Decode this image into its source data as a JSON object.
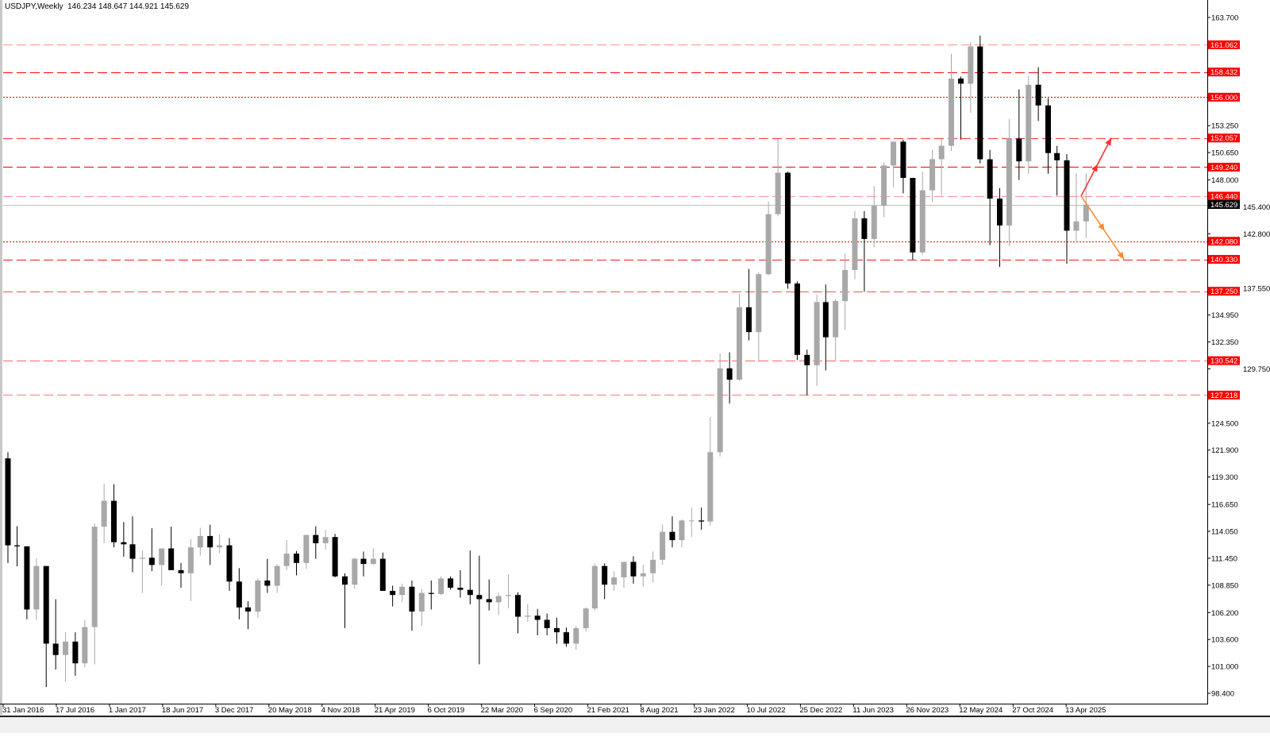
{
  "header": {
    "symbol_timeframe": "USDJPY,Weekly",
    "ohlc": "146.234 148.647 144.921 145.629"
  },
  "chart_data": {
    "type": "candlestick",
    "title": "USDJPY,Weekly",
    "ylim": [
      98.4,
      163.7
    ],
    "grid": false,
    "y_ticks": [
      "163.700",
      "153.250",
      "150.650",
      "148.000",
      "145.400",
      "142.800",
      "137.550",
      "134.950",
      "132.350",
      "129.750",
      "124.500",
      "121.900",
      "119.300",
      "116.650",
      "114.050",
      "111.450",
      "108.850",
      "106.200",
      "103.600",
      "101.000",
      "98.400"
    ],
    "x_ticks": [
      "31 Jan 2016",
      "17 Jul 2016",
      "1 Jan 2017",
      "18 Jun 2017",
      "3 Dec 2017",
      "20 May 2018",
      "4 Nov 2018",
      "21 Apr 2019",
      "6 Oct 2019",
      "22 Mar 2020",
      "6 Sep 2020",
      "21 Feb 2021",
      "8 Aug 2021",
      "23 Jan 2022",
      "10 Jul 2022",
      "25 Dec 2022",
      "11 Jun 2023",
      "26 Nov 2023",
      "12 May 2024",
      "27 Oct 2024",
      "13 Apr 2025"
    ],
    "candles_columns": [
      "month",
      "open",
      "high",
      "low",
      "close"
    ],
    "candles": [
      [
        "2016-02",
        121.1,
        121.7,
        110.98,
        112.7
      ],
      [
        "2016-03",
        112.7,
        114.55,
        110.67,
        112.6
      ],
      [
        "2016-04",
        112.6,
        112.6,
        105.55,
        106.5
      ],
      [
        "2016-05",
        106.5,
        111.45,
        105.5,
        110.7
      ],
      [
        "2016-06",
        110.7,
        110.7,
        99.0,
        103.2
      ],
      [
        "2016-07",
        103.2,
        107.5,
        100.7,
        102.1
      ],
      [
        "2016-08",
        102.1,
        104.3,
        99.55,
        103.4
      ],
      [
        "2016-09",
        103.4,
        104.3,
        100.1,
        101.3
      ],
      [
        "2016-10",
        101.3,
        105.5,
        100.9,
        104.8
      ],
      [
        "2016-11",
        104.8,
        114.8,
        101.2,
        114.5
      ],
      [
        "2016-12",
        114.5,
        118.65,
        112.9,
        117.0
      ],
      [
        "2017-01",
        117.0,
        118.6,
        112.5,
        113.0
      ],
      [
        "2017-02",
        113.0,
        114.95,
        111.6,
        112.8
      ],
      [
        "2017-03",
        112.8,
        115.5,
        110.1,
        111.4
      ],
      [
        "2017-04",
        111.4,
        112.2,
        108.1,
        111.5
      ],
      [
        "2017-05",
        111.5,
        114.35,
        110.2,
        110.8
      ],
      [
        "2017-06",
        110.8,
        112.4,
        108.8,
        112.4
      ],
      [
        "2017-07",
        112.4,
        114.5,
        110.6,
        110.3
      ],
      [
        "2017-08",
        110.3,
        111.0,
        108.6,
        110.0
      ],
      [
        "2017-09",
        110.0,
        113.3,
        107.3,
        112.5
      ],
      [
        "2017-10",
        112.5,
        114.4,
        111.7,
        113.6
      ],
      [
        "2017-11",
        113.6,
        114.7,
        110.8,
        112.5
      ],
      [
        "2017-12",
        112.5,
        113.75,
        111.95,
        112.7
      ],
      [
        "2018-01",
        112.7,
        113.4,
        108.3,
        109.2
      ],
      [
        "2018-02",
        109.2,
        110.5,
        105.55,
        106.7
      ],
      [
        "2018-03",
        106.7,
        107.3,
        104.6,
        106.3
      ],
      [
        "2018-04",
        106.3,
        109.5,
        105.7,
        109.3
      ],
      [
        "2018-05",
        109.3,
        111.4,
        108.1,
        108.8
      ],
      [
        "2018-06",
        108.8,
        110.9,
        108.1,
        110.7
      ],
      [
        "2018-07",
        110.7,
        113.2,
        110.3,
        111.9
      ],
      [
        "2018-08",
        111.9,
        112.15,
        109.8,
        111.0
      ],
      [
        "2018-09",
        111.0,
        113.7,
        110.4,
        113.7
      ],
      [
        "2018-10",
        113.7,
        114.55,
        111.4,
        112.9
      ],
      [
        "2018-11",
        112.9,
        114.2,
        112.3,
        113.5
      ],
      [
        "2018-12",
        113.5,
        113.8,
        109.6,
        109.7
      ],
      [
        "2019-01",
        109.7,
        110.0,
        104.7,
        108.9
      ],
      [
        "2019-02",
        108.9,
        111.5,
        108.5,
        111.4
      ],
      [
        "2019-03",
        111.4,
        112.1,
        109.7,
        110.9
      ],
      [
        "2019-04",
        110.9,
        112.4,
        110.8,
        111.4
      ],
      [
        "2019-05",
        111.4,
        112.0,
        108.3,
        108.3
      ],
      [
        "2019-06",
        108.3,
        108.8,
        106.8,
        107.9
      ],
      [
        "2019-07",
        107.9,
        109.0,
        107.2,
        108.7
      ],
      [
        "2019-08",
        108.7,
        109.3,
        104.45,
        106.3
      ],
      [
        "2019-09",
        106.3,
        108.5,
        104.9,
        108.1
      ],
      [
        "2019-10",
        108.1,
        109.3,
        106.5,
        108.0
      ],
      [
        "2019-11",
        108.0,
        109.7,
        107.9,
        109.5
      ],
      [
        "2019-12",
        109.5,
        109.7,
        108.4,
        108.6
      ],
      [
        "2020-01",
        108.6,
        110.3,
        107.65,
        108.4
      ],
      [
        "2020-02",
        108.4,
        112.2,
        107.0,
        107.9
      ],
      [
        "2020-03",
        107.9,
        111.7,
        101.2,
        107.5
      ],
      [
        "2020-04",
        107.5,
        109.4,
        106.4,
        107.2
      ],
      [
        "2020-05",
        107.2,
        108.1,
        105.98,
        107.8
      ],
      [
        "2020-06",
        107.8,
        109.85,
        106.6,
        107.9
      ],
      [
        "2020-07",
        107.9,
        108.15,
        104.2,
        105.8
      ],
      [
        "2020-08",
        105.8,
        107.05,
        105.3,
        105.9
      ],
      [
        "2020-09",
        105.9,
        106.55,
        104.0,
        105.5
      ],
      [
        "2020-10",
        105.5,
        106.1,
        104.0,
        104.7
      ],
      [
        "2020-11",
        104.7,
        105.7,
        103.2,
        104.3
      ],
      [
        "2020-12",
        104.3,
        104.75,
        102.9,
        103.2
      ],
      [
        "2021-01",
        103.2,
        104.9,
        102.6,
        104.7
      ],
      [
        "2021-02",
        104.7,
        106.7,
        104.4,
        106.6
      ],
      [
        "2021-03",
        106.6,
        110.95,
        106.4,
        110.7
      ],
      [
        "2021-04",
        110.7,
        110.95,
        107.5,
        108.9
      ],
      [
        "2021-05",
        108.9,
        110.2,
        108.3,
        109.6
      ],
      [
        "2021-06",
        109.6,
        111.1,
        108.6,
        111.1
      ],
      [
        "2021-07",
        111.1,
        111.65,
        109.0,
        109.7
      ],
      [
        "2021-08",
        109.7,
        110.8,
        108.7,
        110.0
      ],
      [
        "2021-09",
        110.0,
        112.1,
        109.1,
        111.3
      ],
      [
        "2021-10",
        111.3,
        114.7,
        110.8,
        114.0
      ],
      [
        "2021-11",
        114.0,
        115.5,
        112.5,
        113.2
      ],
      [
        "2021-12",
        113.2,
        115.2,
        112.5,
        115.1
      ],
      [
        "2022-01",
        115.1,
        116.35,
        113.5,
        115.1
      ],
      [
        "2022-02",
        115.1,
        116.35,
        114.2,
        115.0
      ],
      [
        "2022-03",
        115.0,
        125.1,
        114.6,
        121.7
      ],
      [
        "2022-04",
        121.7,
        131.25,
        121.3,
        129.8
      ],
      [
        "2022-05",
        129.8,
        131.35,
        126.4,
        128.7
      ],
      [
        "2022-06",
        128.7,
        137.0,
        128.6,
        135.7
      ],
      [
        "2022-07",
        135.7,
        139.4,
        132.5,
        133.3
      ],
      [
        "2022-08",
        133.3,
        139.1,
        130.4,
        138.9
      ],
      [
        "2022-09",
        138.9,
        145.9,
        138.8,
        144.7
      ],
      [
        "2022-10",
        144.7,
        151.95,
        144.5,
        148.7
      ],
      [
        "2022-11",
        148.7,
        148.8,
        137.5,
        138.0
      ],
      [
        "2022-12",
        138.0,
        138.2,
        130.6,
        131.1
      ],
      [
        "2023-01",
        131.1,
        131.6,
        127.2,
        130.1
      ],
      [
        "2023-02",
        130.1,
        136.9,
        128.1,
        136.2
      ],
      [
        "2023-03",
        136.2,
        137.9,
        129.6,
        132.8
      ],
      [
        "2023-04",
        132.8,
        136.5,
        130.6,
        136.3
      ],
      [
        "2023-05",
        136.3,
        140.9,
        133.5,
        139.3
      ],
      [
        "2023-06",
        139.3,
        145.0,
        138.4,
        144.3
      ],
      [
        "2023-07",
        144.3,
        145.0,
        137.2,
        142.3
      ],
      [
        "2023-08",
        142.3,
        147.4,
        141.5,
        145.5
      ],
      [
        "2023-09",
        145.5,
        149.7,
        144.4,
        149.4
      ],
      [
        "2023-10",
        149.4,
        151.7,
        147.3,
        151.7
      ],
      [
        "2023-11",
        151.7,
        151.9,
        146.7,
        148.2
      ],
      [
        "2023-12",
        148.2,
        148.2,
        140.3,
        141.0
      ],
      [
        "2024-01",
        141.0,
        148.8,
        140.8,
        147.0
      ],
      [
        "2024-02",
        147.0,
        150.9,
        145.9,
        150.0
      ],
      [
        "2024-03",
        150.0,
        151.97,
        146.5,
        151.3
      ],
      [
        "2024-04",
        151.3,
        160.2,
        150.8,
        157.8
      ],
      [
        "2024-05",
        157.8,
        157.99,
        151.9,
        157.3
      ],
      [
        "2024-06",
        157.3,
        161.3,
        154.5,
        160.9
      ],
      [
        "2024-07",
        160.9,
        161.95,
        149.6,
        150.0
      ],
      [
        "2024-08",
        150.0,
        150.9,
        141.7,
        146.2
      ],
      [
        "2024-09",
        146.2,
        147.2,
        139.6,
        143.6
      ],
      [
        "2024-10",
        143.6,
        153.9,
        141.6,
        152.0
      ],
      [
        "2024-11",
        152.0,
        156.75,
        148.0,
        149.8
      ],
      [
        "2024-12",
        149.8,
        158.1,
        148.6,
        157.2
      ],
      [
        "2025-01",
        157.2,
        158.9,
        153.7,
        155.2
      ],
      [
        "2025-02",
        155.2,
        155.9,
        148.6,
        150.6
      ],
      [
        "2025-03",
        150.6,
        151.3,
        146.5,
        149.9
      ],
      [
        "2025-04",
        149.9,
        150.5,
        139.9,
        143.1
      ],
      [
        "2025-05",
        143.1,
        148.65,
        142.1,
        144.0
      ],
      [
        "2025-06",
        144.0,
        148.647,
        142.4,
        145.629
      ]
    ],
    "current_price": {
      "label": "145.629",
      "value": 145.629,
      "color": "#000000"
    },
    "levels": [
      {
        "label": "161.062",
        "value": 161.062,
        "style": "dash",
        "color": "#ff9f9f"
      },
      {
        "label": "158.432",
        "value": 158.432,
        "style": "dash",
        "color": "#ff2020"
      },
      {
        "label": "156.000",
        "value": 156.0,
        "style": "dot",
        "color": "#ff2020"
      },
      {
        "label": "152.057",
        "value": 152.057,
        "style": "dash",
        "color": "#ff4a4a"
      },
      {
        "label": "149.240",
        "value": 149.24,
        "style": "dash",
        "color": "#ff2020"
      },
      {
        "label": "146.440",
        "value": 146.44,
        "style": "dash",
        "color": "#ff9f9f"
      },
      {
        "label": "142.080",
        "value": 142.08,
        "style": "dot",
        "color": "#ff2020"
      },
      {
        "label": "140.330",
        "value": 140.33,
        "style": "dash",
        "color": "#ff3a3a"
      },
      {
        "label": "137.250",
        "value": 137.25,
        "style": "dash",
        "color": "#ff6a6a"
      },
      {
        "label": "130.542",
        "value": 130.542,
        "style": "dash",
        "color": "#ff7a7a"
      },
      {
        "label": "127.218",
        "value": 127.218,
        "style": "dash",
        "color": "#ff8a8a"
      }
    ],
    "annotations": [
      {
        "type": "arrow",
        "direction": "up",
        "from_price": 146.44,
        "to_price": 152.057,
        "color": "#ff3030"
      },
      {
        "type": "arrow",
        "direction": "down",
        "from_price": 146.44,
        "to_price": 140.33,
        "color": "#ff8a30"
      }
    ],
    "colors": {
      "bull": "#a8a8a8",
      "bear": "#000000",
      "label_bg": "#ff0000",
      "label_text": "#ffffff"
    }
  }
}
